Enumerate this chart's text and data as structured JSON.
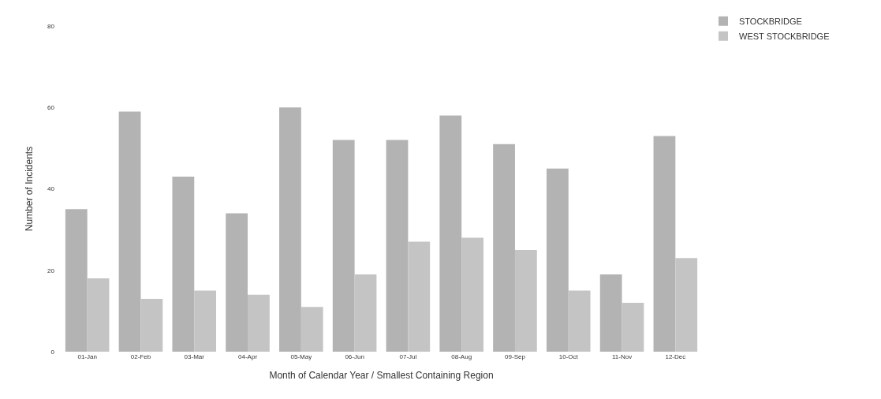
{
  "chart_data": {
    "type": "bar",
    "xlabel": "Month of Calendar Year / Smallest Containing Region",
    "ylabel": "Number of Incidents",
    "categories": [
      "01-Jan",
      "02-Feb",
      "03-Mar",
      "04-Apr",
      "05-May",
      "06-Jun",
      "07-Jul",
      "08-Aug",
      "09-Sep",
      "10-Oct",
      "11-Nov",
      "12-Dec"
    ],
    "series": [
      {
        "name": "STOCKBRIDGE",
        "color": "#b3b3b3",
        "values": [
          35,
          59,
          43,
          34,
          60,
          52,
          52,
          58,
          51,
          45,
          19,
          53
        ]
      },
      {
        "name": "WEST STOCKBRIDGE",
        "color": "#c4c4c4",
        "values": [
          18,
          13,
          15,
          14,
          11,
          19,
          27,
          28,
          25,
          15,
          12,
          23
        ]
      }
    ],
    "ylim": [
      0,
      80
    ],
    "yticks": [
      0,
      20,
      40,
      60,
      80
    ],
    "grid": false,
    "legend": "top right"
  }
}
